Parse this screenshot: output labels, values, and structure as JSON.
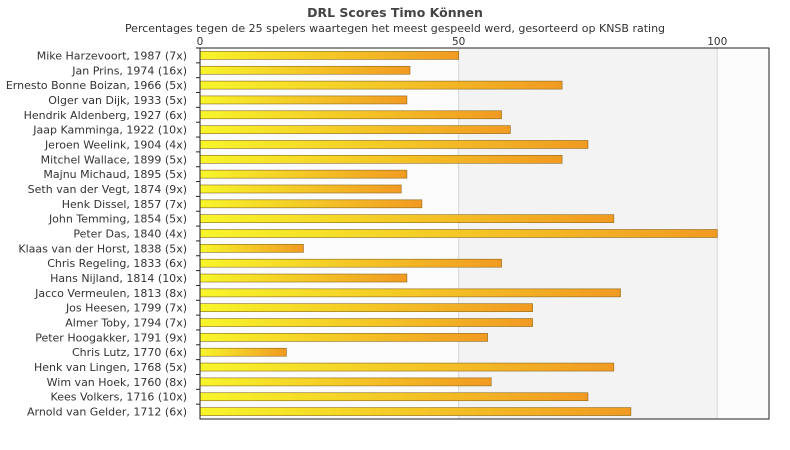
{
  "chart_data": {
    "type": "bar",
    "orientation": "horizontal",
    "title": "DRL Scores Timo Können",
    "subtitle": "Percentages tegen de 25 spelers waartegen het meest gespeeld werd, gesorteerd op KNSB rating",
    "xlim": [
      0,
      110
    ],
    "xticks": [
      0,
      50,
      100
    ],
    "grid": true,
    "categories": [
      "Mike Harzevoort, 1987 (7x)",
      "Jan Prins, 1974 (16x)",
      "Ernesto Bonne Boizan, 1966 (5x)",
      "Olger van Dijk, 1933 (5x)",
      "Hendrik Aldenberg, 1927 (6x)",
      "Jaap Kamminga, 1922 (10x)",
      "Jeroen Weelink, 1904 (4x)",
      "Mitchel Wallace, 1899 (5x)",
      "Majnu Michaud, 1895 (5x)",
      "Seth van der Vegt, 1874 (9x)",
      "Henk Dissel, 1857 (7x)",
      "John Temming, 1854 (5x)",
      "Peter Das, 1840 (4x)",
      "Klaas van der Horst, 1838 (5x)",
      "Chris Regeling, 1833 (6x)",
      "Hans Nijland, 1814 (10x)",
      "Jacco Vermeulen, 1813 (8x)",
      "Jos Heesen, 1799 (7x)",
      "Almer Toby, 1794 (7x)",
      "Peter Hoogakker, 1791 (9x)",
      "Chris Lutz, 1770 (6x)",
      "Henk van Lingen, 1768 (5x)",
      "Wim van Hoek, 1760 (8x)",
      "Kees Volkers, 1716 (10x)",
      "Arnold van Gelder, 1712 (6x)"
    ],
    "values": [
      50,
      40.6,
      70,
      40,
      58.3,
      60,
      75,
      70,
      40,
      38.9,
      42.9,
      80,
      100,
      20,
      58.3,
      40,
      81.3,
      64.3,
      64.3,
      55.6,
      16.7,
      80,
      56.3,
      75,
      83.3
    ],
    "colors": {
      "bar_start": "#f7f52a",
      "bar_end": "#f19a22",
      "bar_stroke": "#8c6a1e",
      "plot_bg_light": "#fcfcfc",
      "plot_bg_shade": "#f3f3f3",
      "grid": "#d8d8d8",
      "axis": "#222222"
    }
  }
}
